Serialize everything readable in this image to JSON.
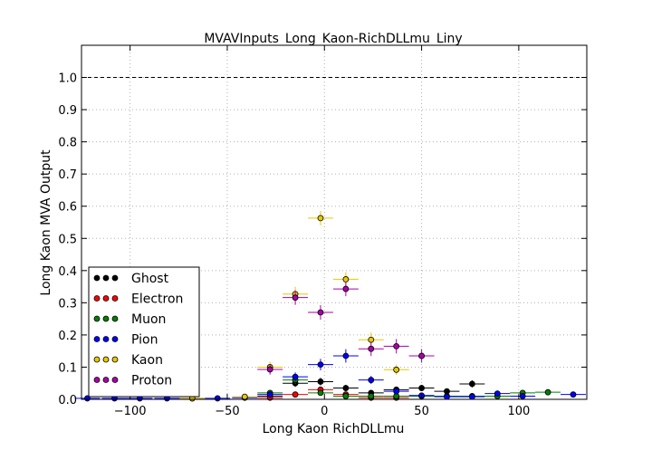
{
  "chart_data": {
    "type": "scatter",
    "title": "MVAVInputs_Long_Kaon-RichDLLmu_Liny",
    "xlabel": "Long Kaon RichDLLmu",
    "ylabel": "Long Kaon MVA Output",
    "xlim": [
      -125,
      135
    ],
    "ylim": [
      0.0,
      1.1
    ],
    "xticks": [
      -100,
      -50,
      0,
      50,
      100
    ],
    "xtick_labels": [
      "−100",
      "−50",
      "0",
      "50",
      "100"
    ],
    "yticks": [
      0.0,
      0.1,
      0.2,
      0.3,
      0.4,
      0.5,
      0.6,
      0.7,
      0.8,
      0.9,
      1.0
    ],
    "ytick_labels": [
      "0.0",
      "0.1",
      "0.2",
      "0.3",
      "0.4",
      "0.5",
      "0.6",
      "0.7",
      "0.8",
      "0.9",
      "1.0"
    ],
    "grid": true,
    "reference_line_y": 1.0,
    "legend_position": "lower-left",
    "bin_half_width": 6.5,
    "series": [
      {
        "name": "Ghost",
        "color": "#000000",
        "x": [
          -28,
          -15,
          -2,
          11,
          24,
          37,
          50,
          63,
          76
        ],
        "y": [
          0.01,
          0.05,
          0.055,
          0.035,
          0.02,
          0.03,
          0.035,
          0.025,
          0.048
        ]
      },
      {
        "name": "Electron",
        "color": "#ff0000",
        "x": [
          -28,
          -15,
          -2,
          11,
          24,
          37
        ],
        "y": [
          0.005,
          0.015,
          0.03,
          0.015,
          0.005,
          0.005
        ]
      },
      {
        "name": "Muon",
        "color": "#008000",
        "x": [
          -28,
          -15,
          -2,
          11,
          24,
          37,
          50,
          63,
          76,
          89,
          102,
          115
        ],
        "y": [
          0.02,
          0.06,
          0.02,
          0.01,
          0.01,
          0.01,
          0.01,
          0.01,
          0.01,
          0.01,
          0.02,
          0.022
        ]
      },
      {
        "name": "Pion",
        "color": "#0000ff",
        "x": [
          -122,
          -108,
          -95,
          -81,
          -68,
          -55,
          -41,
          -28,
          -15,
          -2,
          11,
          24,
          37,
          50,
          63,
          76,
          89,
          102,
          128
        ],
        "y": [
          0.003,
          0.003,
          0.003,
          0.003,
          0.003,
          0.003,
          0.005,
          0.015,
          0.07,
          0.108,
          0.135,
          0.06,
          0.025,
          0.012,
          0.008,
          0.008,
          0.018,
          0.01,
          0.015
        ]
      },
      {
        "name": "Kaon",
        "color": "#e6c800",
        "x": [
          -68,
          -41,
          -28,
          -15,
          -2,
          11,
          24,
          37,
          50
        ],
        "y": [
          0.003,
          0.008,
          0.1,
          0.327,
          0.563,
          0.373,
          0.185,
          0.092,
          0.135
        ]
      },
      {
        "name": "Proton",
        "color": "#aa00aa",
        "x": [
          -28,
          -15,
          -2,
          11,
          24,
          37,
          50
        ],
        "y": [
          0.093,
          0.316,
          0.27,
          0.343,
          0.157,
          0.165,
          0.135
        ]
      }
    ]
  }
}
